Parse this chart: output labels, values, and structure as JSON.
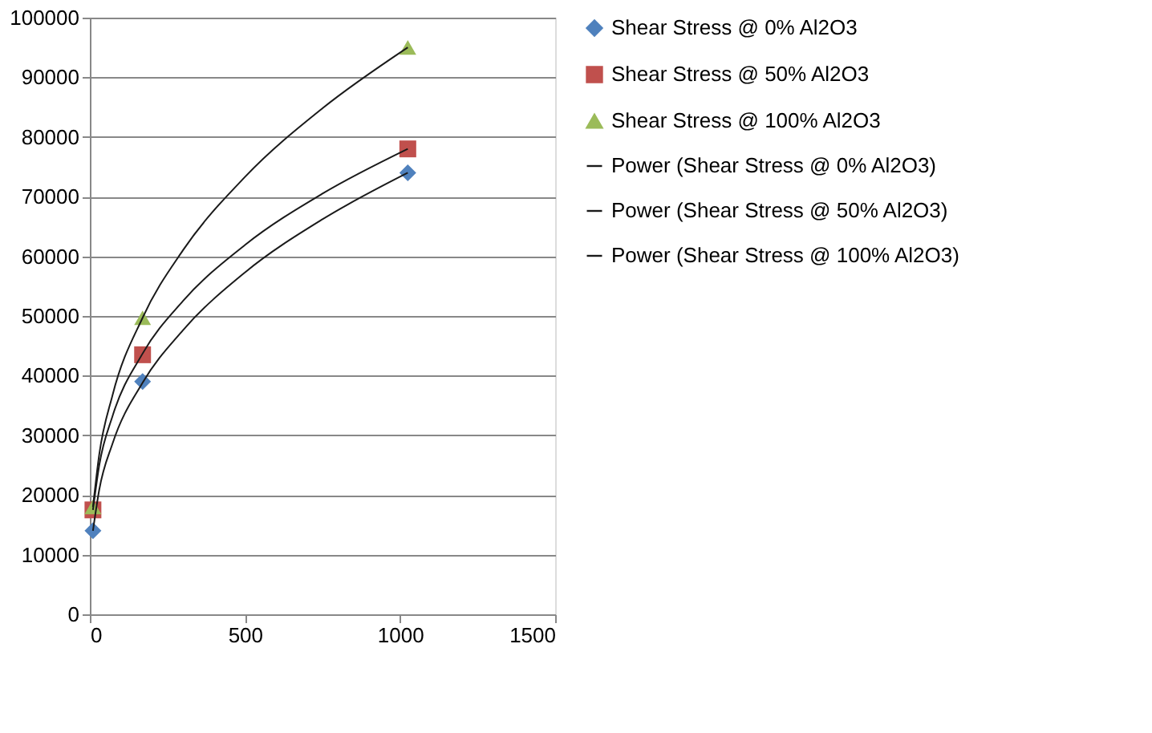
{
  "chart_data": {
    "type": "scatter",
    "xlim": [
      0,
      1500
    ],
    "xticks": [
      0,
      500,
      1000,
      1500
    ],
    "ylim": [
      0,
      100000
    ],
    "yticks": [
      0,
      10000,
      20000,
      30000,
      40000,
      50000,
      60000,
      70000,
      80000,
      90000,
      100000
    ],
    "grid": "y",
    "legend": "right",
    "series": [
      {
        "name": "Shear Stress @ 0% Al2O3",
        "color": "#4f81bd",
        "marker": "diamond",
        "x": [
          10,
          170,
          1025
        ],
        "values": [
          14000,
          39000,
          74000
        ]
      },
      {
        "name": "Shear Stress @ 50% Al2O3",
        "color": "#c0504d",
        "marker": "square",
        "x": [
          10,
          170,
          1025
        ],
        "values": [
          17500,
          43500,
          78000
        ]
      },
      {
        "name": "Shear Stress @ 100% Al2O3",
        "color": "#9bbb59",
        "marker": "triangle",
        "x": [
          10,
          170,
          1025
        ],
        "values": [
          18000,
          49700,
          95000
        ]
      },
      {
        "type": "line",
        "name": "Power (Shear Stress @ 0% Al2O3)",
        "color": "#1a1a1a",
        "marker": "none",
        "line_style": "solid",
        "x": [
          10,
          30,
          73,
          170,
          300,
          500,
          750,
          1025
        ],
        "values": [
          14000,
          20800,
          28600,
          38800,
          47600,
          57300,
          66200,
          74000
        ]
      },
      {
        "type": "line",
        "name": "Power (Shear Stress @ 50% Al2O3)",
        "color": "#1a1a1a",
        "marker": "none",
        "line_style": "solid",
        "x": [
          10,
          30,
          73,
          170,
          300,
          500,
          750,
          1025
        ],
        "values": [
          17500,
          24900,
          33200,
          43700,
          52500,
          61900,
          70500,
          78000
        ]
      },
      {
        "type": "line",
        "name": "Power (Shear Stress @ 100% Al2O3)",
        "color": "#1a1a1a",
        "marker": "none",
        "line_style": "solid",
        "x": [
          10,
          30,
          73,
          170,
          300,
          500,
          750,
          1025
        ],
        "values": [
          18000,
          26700,
          36700,
          49700,
          61000,
          73300,
          84800,
          95000
        ]
      }
    ]
  }
}
